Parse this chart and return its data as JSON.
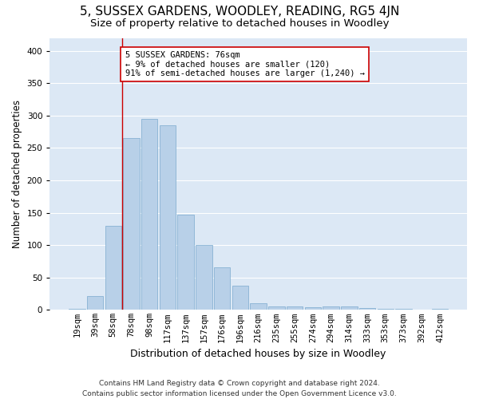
{
  "title": "5, SUSSEX GARDENS, WOODLEY, READING, RG5 4JN",
  "subtitle": "Size of property relative to detached houses in Woodley",
  "xlabel": "Distribution of detached houses by size in Woodley",
  "ylabel": "Number of detached properties",
  "bins": [
    "19sqm",
    "39sqm",
    "58sqm",
    "78sqm",
    "98sqm",
    "117sqm",
    "137sqm",
    "157sqm",
    "176sqm",
    "196sqm",
    "216sqm",
    "235sqm",
    "255sqm",
    "274sqm",
    "294sqm",
    "314sqm",
    "333sqm",
    "353sqm",
    "373sqm",
    "392sqm",
    "412sqm"
  ],
  "bar_values": [
    2,
    22,
    130,
    265,
    295,
    285,
    147,
    100,
    66,
    37,
    10,
    6,
    5,
    4,
    5,
    5,
    3,
    2,
    2,
    0,
    2
  ],
  "bar_color": "#b8d0e8",
  "bar_edge_color": "#7aaace",
  "fig_background_color": "#ffffff",
  "plot_background_color": "#dce8f5",
  "grid_color": "#ffffff",
  "vline_color": "#cc0000",
  "annotation_text": "5 SUSSEX GARDENS: 76sqm\n← 9% of detached houses are smaller (120)\n91% of semi-detached houses are larger (1,240) →",
  "annotation_box_color": "#ffffff",
  "annotation_box_edge": "#cc0000",
  "ylim": [
    0,
    420
  ],
  "yticks": [
    0,
    50,
    100,
    150,
    200,
    250,
    300,
    350,
    400
  ],
  "footer": "Contains HM Land Registry data © Crown copyright and database right 2024.\nContains public sector information licensed under the Open Government Licence v3.0.",
  "title_fontsize": 11,
  "subtitle_fontsize": 9.5,
  "xlabel_fontsize": 9,
  "ylabel_fontsize": 8.5,
  "tick_fontsize": 7.5,
  "footer_fontsize": 6.5,
  "annot_fontsize": 7.5
}
